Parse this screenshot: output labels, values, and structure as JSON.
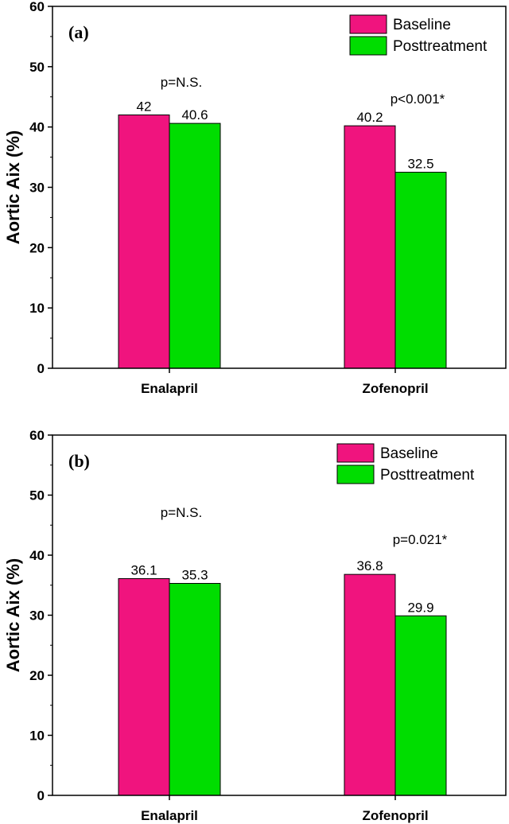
{
  "colors": {
    "baseline": "#f0147e",
    "posttreatment": "#00dd00"
  },
  "chart_data": [
    {
      "type": "bar",
      "panel_label": "(a)",
      "ylabel": "Aortic Aix (%)",
      "ylim": [
        0,
        60
      ],
      "yticks": [
        "0",
        "10",
        "20",
        "30",
        "40",
        "50",
        "60"
      ],
      "categories": [
        "Enalapril",
        "Zofenopril"
      ],
      "series": [
        {
          "name": "Baseline",
          "values": [
            42,
            40.2
          ],
          "labels": [
            "42",
            "40.2"
          ]
        },
        {
          "name": "Posttreatment",
          "values": [
            40.6,
            32.5
          ],
          "labels": [
            "40.6",
            "32.5"
          ]
        }
      ],
      "annotations": [
        "p=N.S.",
        "p<0.001*"
      ],
      "legend": [
        "Baseline",
        "Posttreatment"
      ]
    },
    {
      "type": "bar",
      "panel_label": "(b)",
      "ylabel": "Aortic Aix (%)",
      "ylim": [
        0,
        60
      ],
      "yticks": [
        "0",
        "10",
        "20",
        "30",
        "40",
        "50",
        "60"
      ],
      "categories": [
        "Enalapril",
        "Zofenopril"
      ],
      "series": [
        {
          "name": "Baseline",
          "values": [
            36.1,
            36.8
          ],
          "labels": [
            "36.1",
            "36.8"
          ]
        },
        {
          "name": "Posttreatment",
          "values": [
            35.3,
            29.9
          ],
          "labels": [
            "35.3",
            "29.9"
          ]
        }
      ],
      "annotations": [
        "p=N.S.",
        "p=0.021*"
      ],
      "legend": [
        "Baseline",
        "Posttreatment"
      ]
    }
  ]
}
